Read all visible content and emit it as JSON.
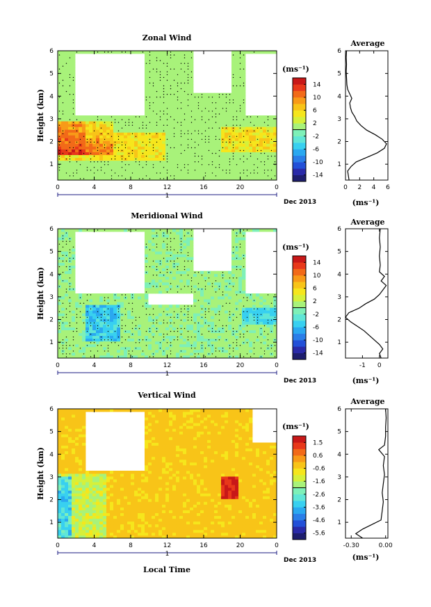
{
  "figure": {
    "month_label": "Dec 2013",
    "day_label": "1",
    "xlabel": "Local Time"
  },
  "chart_data": [
    {
      "type": "heatmap",
      "title": "Zonal Wind",
      "ylabel": "Height (km)",
      "x_ticks": [
        "0",
        "4",
        "8",
        "12",
        "16",
        "20",
        "0"
      ],
      "xlim": [
        0,
        24
      ],
      "y_ticks": [
        "1",
        "2",
        "3",
        "4",
        "5",
        "6"
      ],
      "ylim": [
        0.3,
        6
      ],
      "colorbar": {
        "unit": "(ms⁻¹)",
        "ticks": [
          "14",
          "10",
          "6",
          "2",
          "-2",
          "-6",
          "-10",
          "-14"
        ],
        "range": [
          -16,
          16
        ]
      },
      "average": {
        "title": "Average",
        "xlabel": "(ms⁻¹)",
        "x_ticks": [
          "0",
          "2",
          "4",
          "6"
        ],
        "xlim": [
          0,
          6
        ],
        "profile": [
          [
            0.5,
            0.3
          ],
          [
            0.4,
            0.5
          ],
          [
            0.3,
            0.7
          ],
          [
            0.8,
            0.9
          ],
          [
            1.5,
            1.1
          ],
          [
            3.0,
            1.3
          ],
          [
            4.5,
            1.5
          ],
          [
            5.5,
            1.7
          ],
          [
            5.8,
            1.9
          ],
          [
            5.2,
            2.1
          ],
          [
            4.2,
            2.3
          ],
          [
            3.0,
            2.5
          ],
          [
            2.2,
            2.7
          ],
          [
            1.6,
            2.9
          ],
          [
            1.3,
            3.1
          ],
          [
            0.9,
            3.3
          ],
          [
            0.7,
            3.5
          ],
          [
            0.6,
            3.7
          ],
          [
            0.9,
            3.9
          ],
          [
            0.6,
            4.1
          ],
          [
            0.3,
            4.3
          ],
          [
            0.2,
            4.5
          ],
          [
            0.15,
            4.8
          ],
          [
            0.1,
            5.1
          ],
          [
            0.15,
            5.4
          ],
          [
            0.1,
            5.7
          ],
          [
            0.15,
            6.0
          ]
        ]
      }
    },
    {
      "type": "heatmap",
      "title": "Meridional Wind",
      "ylabel": "Height (km)",
      "x_ticks": [
        "0",
        "4",
        "8",
        "12",
        "16",
        "20",
        "0"
      ],
      "xlim": [
        0,
        24
      ],
      "y_ticks": [
        "1",
        "2",
        "3",
        "4",
        "5",
        "6"
      ],
      "ylim": [
        0.3,
        6
      ],
      "colorbar": {
        "unit": "(ms⁻¹)",
        "ticks": [
          "14",
          "10",
          "6",
          "2",
          "-2",
          "-6",
          "-10",
          "-14"
        ],
        "range": [
          -16,
          16
        ]
      },
      "average": {
        "title": "Average",
        "xlabel": "(ms⁻¹)",
        "x_ticks": [
          "-1",
          "0"
        ],
        "xlim": [
          -2,
          0.5
        ],
        "profile": [
          [
            0.1,
            0.3
          ],
          [
            0.0,
            0.5
          ],
          [
            0.2,
            0.7
          ],
          [
            0.0,
            0.9
          ],
          [
            -0.3,
            1.1
          ],
          [
            -0.6,
            1.3
          ],
          [
            -0.9,
            1.5
          ],
          [
            -1.3,
            1.7
          ],
          [
            -1.7,
            1.9
          ],
          [
            -2.0,
            2.1
          ],
          [
            -1.8,
            2.3
          ],
          [
            -1.2,
            2.5
          ],
          [
            -0.8,
            2.7
          ],
          [
            -0.3,
            2.9
          ],
          [
            0.0,
            3.1
          ],
          [
            0.2,
            3.3
          ],
          [
            0.4,
            3.5
          ],
          [
            0.1,
            3.7
          ],
          [
            0.3,
            3.9
          ],
          [
            0.0,
            4.1
          ],
          [
            0.05,
            4.4
          ],
          [
            0.0,
            4.8
          ],
          [
            0.05,
            5.2
          ],
          [
            0.0,
            5.6
          ],
          [
            0.05,
            6.0
          ]
        ]
      }
    },
    {
      "type": "heatmap",
      "title": "Vertical Wind",
      "ylabel": "Height (km)",
      "x_ticks": [
        "0",
        "4",
        "8",
        "12",
        "16",
        "20",
        "0"
      ],
      "xlim": [
        0,
        24
      ],
      "y_ticks": [
        "1",
        "2",
        "3",
        "4",
        "5",
        "6"
      ],
      "ylim": [
        0.3,
        6
      ],
      "colorbar": {
        "unit": "(ms⁻¹)",
        "ticks": [
          "1.5",
          "0.6",
          "-0.6",
          "-1.6",
          "-2.6",
          "-3.6",
          "-4.6",
          "-5.6"
        ],
        "range": [
          -6,
          2
        ]
      },
      "average": {
        "title": "Average",
        "xlabel": "(ms⁻¹)",
        "x_ticks": [
          "-0.30",
          "0.00"
        ],
        "xlim": [
          -0.35,
          0.02
        ],
        "profile": [
          [
            -0.2,
            0.3
          ],
          [
            -0.26,
            0.5
          ],
          [
            -0.2,
            0.7
          ],
          [
            -0.12,
            0.9
          ],
          [
            -0.04,
            1.1
          ],
          [
            -0.03,
            1.5
          ],
          [
            -0.02,
            1.9
          ],
          [
            -0.03,
            2.3
          ],
          [
            -0.02,
            2.7
          ],
          [
            -0.01,
            3.1
          ],
          [
            -0.02,
            3.5
          ],
          [
            -0.01,
            3.9
          ],
          [
            -0.06,
            4.2
          ],
          [
            -0.01,
            4.4
          ],
          [
            0.0,
            4.8
          ],
          [
            0.0,
            5.2
          ],
          [
            0.005,
            5.6
          ],
          [
            0.0,
            6.0
          ]
        ]
      }
    }
  ]
}
